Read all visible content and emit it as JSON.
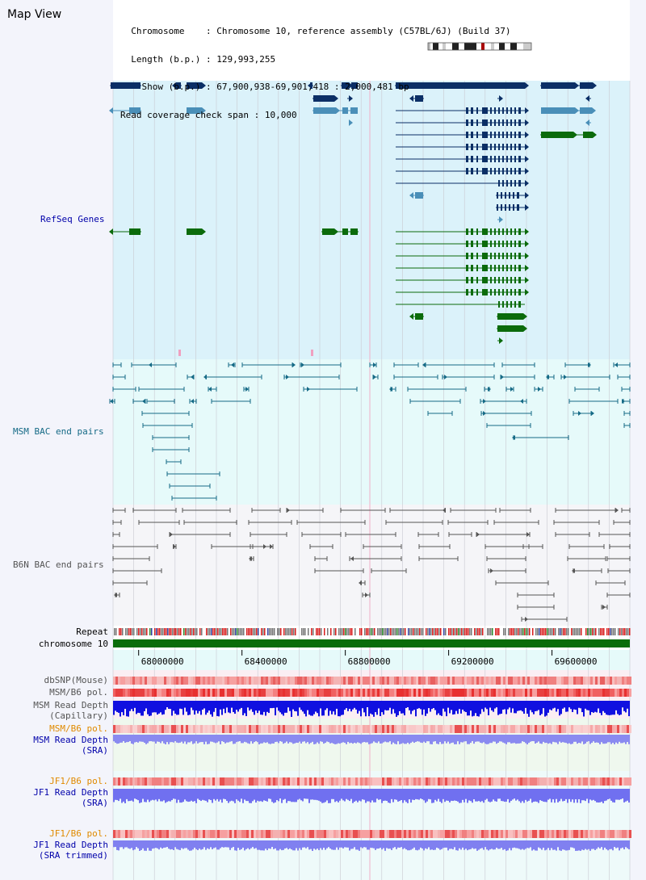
{
  "view": {
    "title": "Map View",
    "header": {
      "chromosome_label": "Chromosome",
      "chromosome_value": "Chromosome 10, reference assembly (C57BL/6J) (Build 37)",
      "length_label": "Length (b.p.)",
      "length_value": "129,993,255",
      "show_label": "Show (b.p.)",
      "show_value": "67,900,938-69,901,418 : 2,000,481 bp",
      "coverage_label": "Read coverage check span",
      "coverage_value": "10,000"
    }
  },
  "tracks": {
    "refseq": "RefSeq Genes",
    "msm_bac": "MSM BAC end pairs",
    "b6n_bac": "B6N BAC end pairs",
    "repeat": "Repeat",
    "chromosome": "chromosome 10",
    "dbsnp": "dbSNP(Mouse)",
    "msm_pol": "MSM/B6 pol.",
    "msm_depth_cap_1": "MSM Read Depth",
    "msm_depth_cap_2": "(Capillary)",
    "msm_pol_sra": "MSM/B6 pol.",
    "msm_depth_sra_1": "MSM Read Depth",
    "msm_depth_sra_2": "(SRA)",
    "jf1_pol": "JF1/B6 pol.",
    "jf1_depth_1": "JF1 Read Depth",
    "jf1_depth_2": "(SRA)",
    "jf1_pol_trim": "JF1/B6 pol.",
    "jf1_depth_trim_1": "JF1 Read Depth",
    "jf1_depth_trim_2": "(SRA trimmed)"
  },
  "axis": {
    "ticks": [
      {
        "pos": 68000000,
        "label": "68000000"
      },
      {
        "pos": 68400000,
        "label": "68400000"
      },
      {
        "pos": 68800000,
        "label": "68800000"
      },
      {
        "pos": 69200000,
        "label": "69200000"
      },
      {
        "pos": 69600000,
        "label": "69600000"
      }
    ],
    "range": [
      67900938,
      69901418
    ]
  },
  "colors": {
    "refseq_bg": "#dbf2fa",
    "msm_bg": "#e6fafa",
    "b6n_bg": "#f5f5f8",
    "gene_dark": "#0b2f66",
    "gene_light": "#4a8fb8",
    "gene_green": "#0b6b0b",
    "msm_line": "#156a86",
    "b6n_line": "#555555",
    "chrom": "#0a6d0a",
    "label_blue": "#0000aa",
    "label_orange": "#e08a00"
  }
}
